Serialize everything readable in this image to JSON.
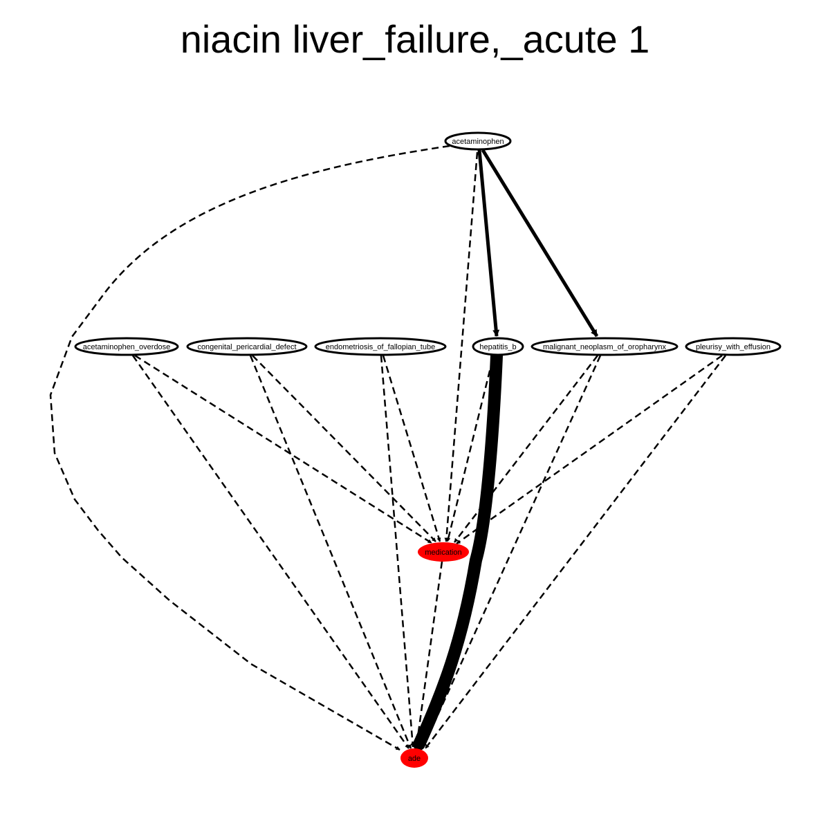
{
  "title": "niacin liver_failure,_acute 1",
  "nodes": {
    "acetaminophen": {
      "label": "acetaminophen",
      "fill": "#ffffff"
    },
    "acetaminophen_overdose": {
      "label": "acetaminophen_overdose",
      "fill": "#ffffff"
    },
    "congenital_pericardial_defect": {
      "label": "congenital_pericardial_defect",
      "fill": "#ffffff"
    },
    "endometriosis_of_fallopian_tube": {
      "label": "endometriosis_of_fallopian_tube",
      "fill": "#ffffff"
    },
    "hepatitis_b": {
      "label": "hepatitis_b",
      "fill": "#ffffff"
    },
    "malignant_neoplasm_of_oropharynx": {
      "label": "malignant_neoplasm_of_oropharynx",
      "fill": "#ffffff"
    },
    "pleurisy_with_effusion": {
      "label": "pleurisy_with_effusion",
      "fill": "#ffffff"
    },
    "medication": {
      "label": "medication",
      "fill": "#ff0000"
    },
    "ade": {
      "label": "ade",
      "fill": "#ff0000"
    }
  },
  "edges": [
    {
      "from": "acetaminophen",
      "to": "hepatitis_b",
      "style": "solid",
      "weight": "medium"
    },
    {
      "from": "acetaminophen",
      "to": "malignant_neoplasm_of_oropharynx",
      "style": "solid",
      "weight": "medium"
    },
    {
      "from": "acetaminophen",
      "to": "medication",
      "style": "dashed",
      "weight": "thin"
    },
    {
      "from": "acetaminophen",
      "to": "ade",
      "style": "dashed",
      "weight": "thin"
    },
    {
      "from": "acetaminophen_overdose",
      "to": "medication",
      "style": "dashed",
      "weight": "thin"
    },
    {
      "from": "acetaminophen_overdose",
      "to": "ade",
      "style": "dashed",
      "weight": "thin"
    },
    {
      "from": "congenital_pericardial_defect",
      "to": "medication",
      "style": "dashed",
      "weight": "thin"
    },
    {
      "from": "congenital_pericardial_defect",
      "to": "ade",
      "style": "dashed",
      "weight": "thin"
    },
    {
      "from": "endometriosis_of_fallopian_tube",
      "to": "medication",
      "style": "dashed",
      "weight": "thin"
    },
    {
      "from": "endometriosis_of_fallopian_tube",
      "to": "ade",
      "style": "dashed",
      "weight": "thin"
    },
    {
      "from": "hepatitis_b",
      "to": "medication",
      "style": "dashed",
      "weight": "thin"
    },
    {
      "from": "hepatitis_b",
      "to": "ade",
      "style": "solid",
      "weight": "heavy"
    },
    {
      "from": "malignant_neoplasm_of_oropharynx",
      "to": "medication",
      "style": "dashed",
      "weight": "thin"
    },
    {
      "from": "malignant_neoplasm_of_oropharynx",
      "to": "ade",
      "style": "dashed",
      "weight": "thin"
    },
    {
      "from": "pleurisy_with_effusion",
      "to": "medication",
      "style": "dashed",
      "weight": "thin"
    },
    {
      "from": "pleurisy_with_effusion",
      "to": "ade",
      "style": "dashed",
      "weight": "thin"
    },
    {
      "from": "medication",
      "to": "ade",
      "style": "dashed",
      "weight": "thin"
    }
  ],
  "colors": {
    "highlight": "#ff0000",
    "line": "#000000",
    "background": "#ffffff"
  }
}
